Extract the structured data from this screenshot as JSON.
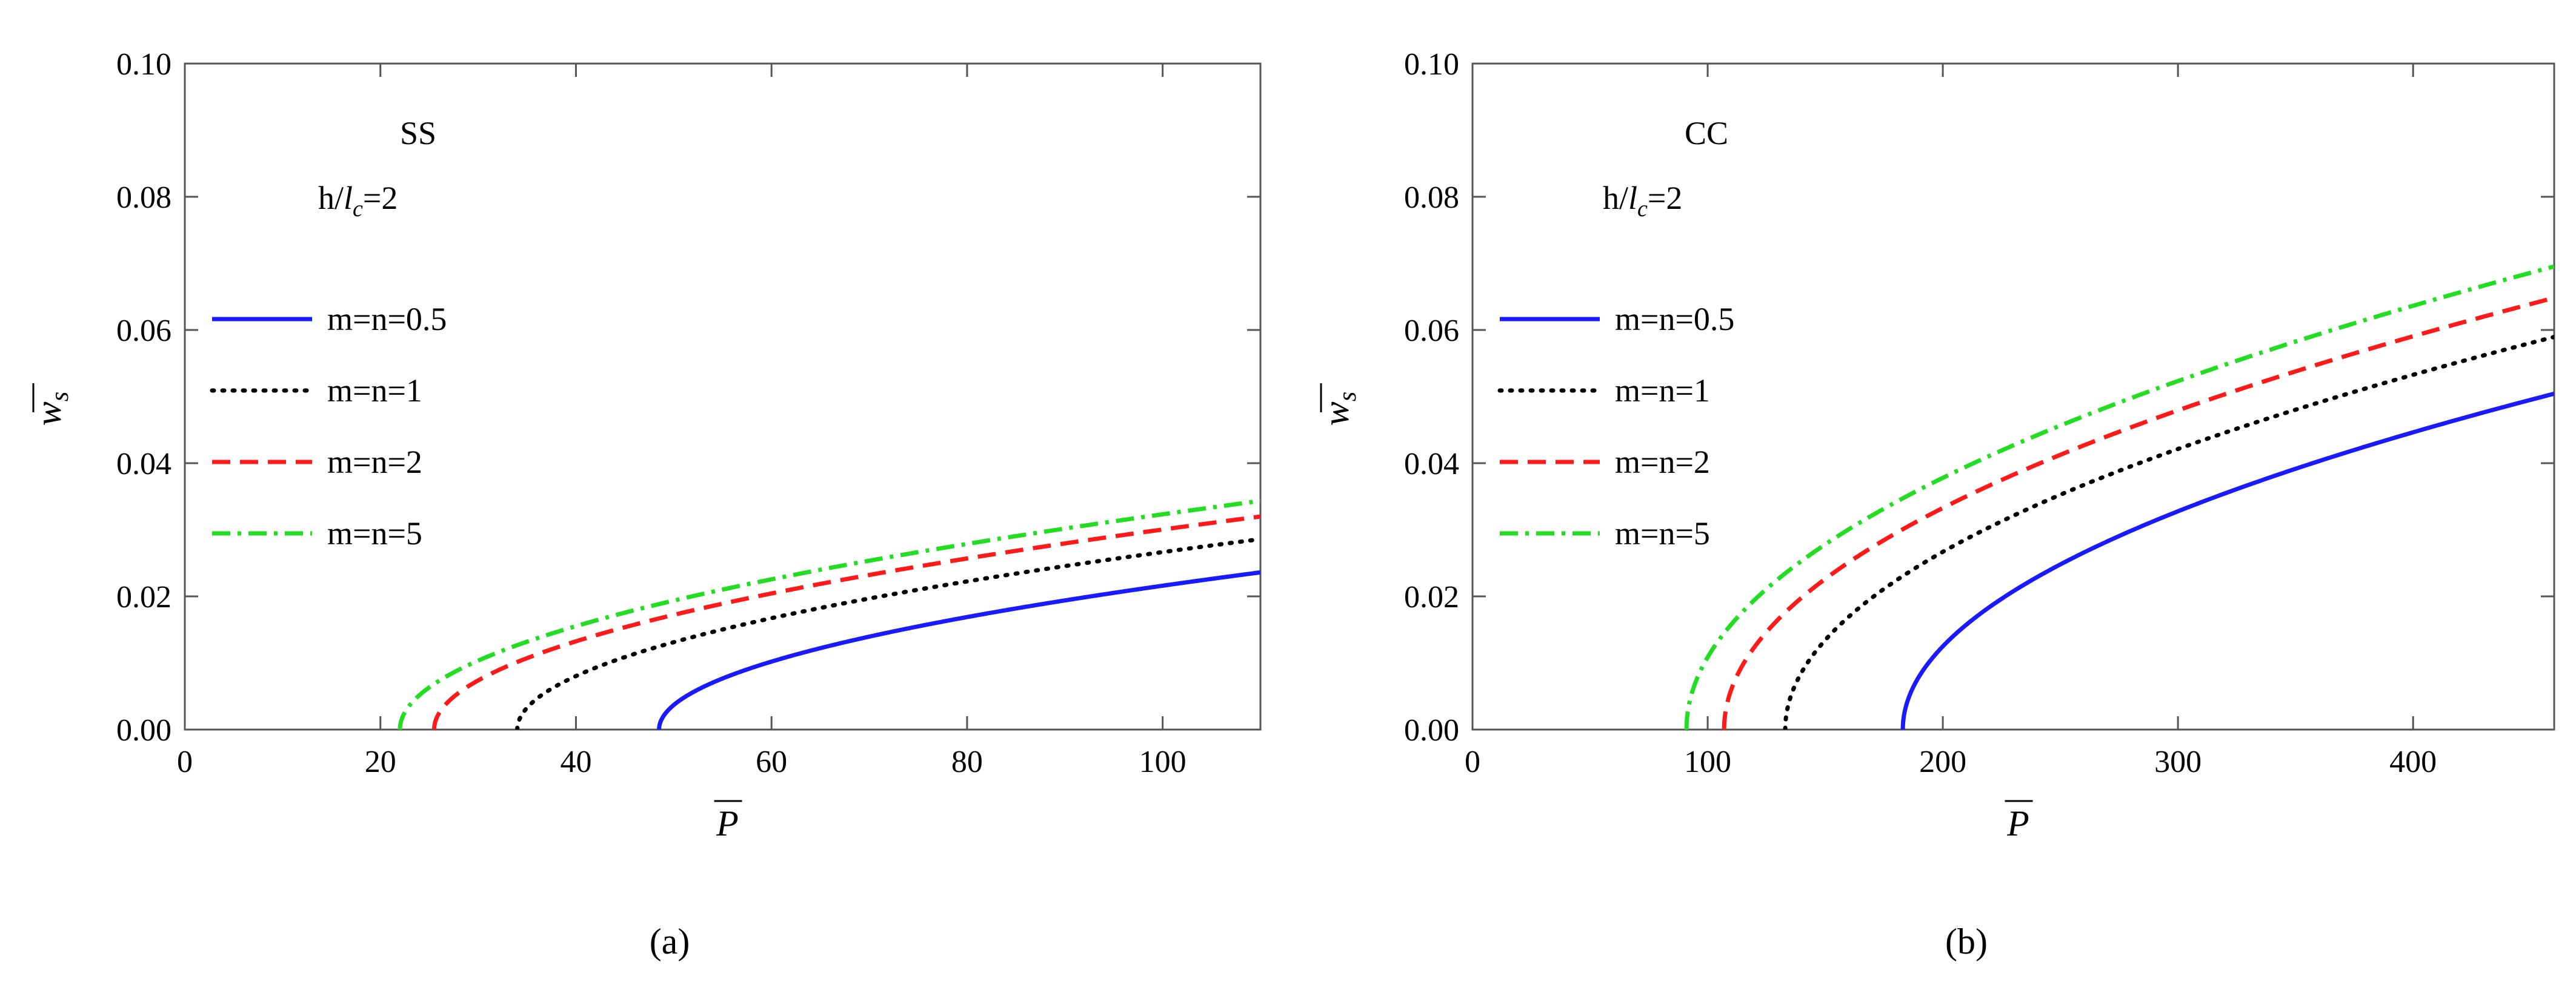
{
  "chart_data": [
    {
      "type": "line",
      "caption": "(a)",
      "annotation_bc": "SS",
      "annotation_ratio": {
        "prefix": "h/",
        "var": "l",
        "sub": "c",
        "suffix": "=2"
      },
      "xlabel": "P",
      "ylabel": {
        "base": "w",
        "sub": "s"
      },
      "xlim": [
        0,
        110
      ],
      "ylim": [
        0,
        0.1
      ],
      "xticks": [
        0,
        20,
        40,
        60,
        80,
        100
      ],
      "yticks": [
        0.0,
        0.02,
        0.04,
        0.06,
        0.08,
        0.1
      ],
      "ytick_labels": [
        "0.00",
        "0.02",
        "0.04",
        "0.06",
        "0.08",
        "0.10"
      ],
      "legend_position": "left",
      "series": [
        {
          "name": "m=n=0.5",
          "color": "#1a1aff",
          "style": "solid",
          "P0": 48.5,
          "k": 0.00301
        },
        {
          "name": "m=n=1",
          "color": "#000000",
          "style": "dotted",
          "P0": 34.0,
          "k": 0.00328
        },
        {
          "name": "m=n=2",
          "color": "#ff1a1a",
          "style": "dashed",
          "P0": 25.5,
          "k": 0.00348
        },
        {
          "name": "m=n=5",
          "color": "#22dd22",
          "style": "dashdot",
          "P0": 22.0,
          "k": 0.00366
        }
      ]
    },
    {
      "type": "line",
      "caption": "(b)",
      "annotation_bc": "CC",
      "annotation_ratio": {
        "prefix": "h/",
        "var": "l",
        "sub": "c",
        "suffix": "=2"
      },
      "xlabel": "P",
      "ylabel": {
        "base": "w",
        "sub": "s"
      },
      "xlim": [
        0,
        460
      ],
      "ylim": [
        0,
        0.1
      ],
      "xticks": [
        0,
        100,
        200,
        300,
        400
      ],
      "yticks": [
        0.0,
        0.02,
        0.04,
        0.06,
        0.08,
        0.1
      ],
      "ytick_labels": [
        "0.00",
        "0.02",
        "0.04",
        "0.06",
        "0.08",
        "0.10"
      ],
      "legend_position": "left",
      "series": [
        {
          "name": "m=n=0.5",
          "color": "#1a1aff",
          "style": "solid",
          "P0": 183.0,
          "k": 0.00303
        },
        {
          "name": "m=n=1",
          "color": "#000000",
          "style": "dotted",
          "P0": 133.0,
          "k": 0.00326
        },
        {
          "name": "m=n=2",
          "color": "#ff1a1a",
          "style": "dashed",
          "P0": 107.0,
          "k": 0.00345
        },
        {
          "name": "m=n=5",
          "color": "#22dd22",
          "style": "dashdot",
          "P0": 91.0,
          "k": 0.00362
        }
      ]
    }
  ]
}
